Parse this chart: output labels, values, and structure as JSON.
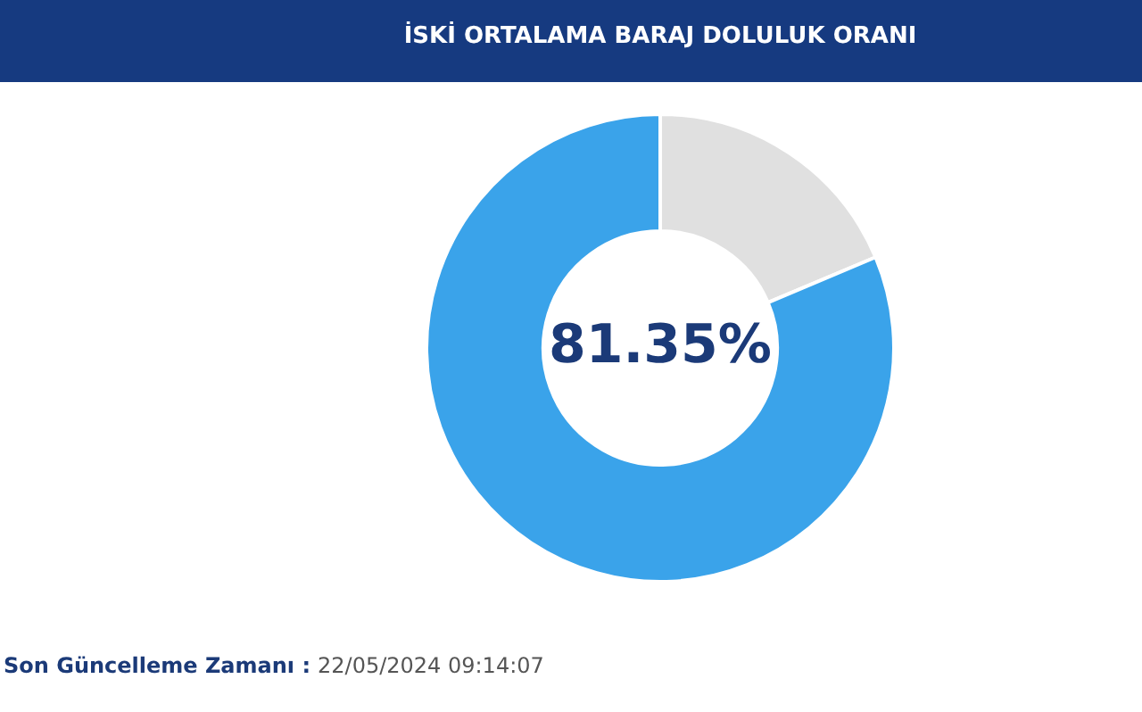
{
  "chart_data": {
    "type": "donut",
    "title": "İSKİ ORTALAMA BARAJ DOLULUK ORANI",
    "categories": [
      null,
      null
    ],
    "values": [
      18.65,
      81.35
    ],
    "colors": [
      "#e0e0e0",
      "#3aa3ea"
    ],
    "value_labels": [
      null,
      "81.35%"
    ],
    "legend": false,
    "annotations": [
      "Son Güncelleme Zamanı :",
      "22/05/2024 09:14:07"
    ]
  }
}
